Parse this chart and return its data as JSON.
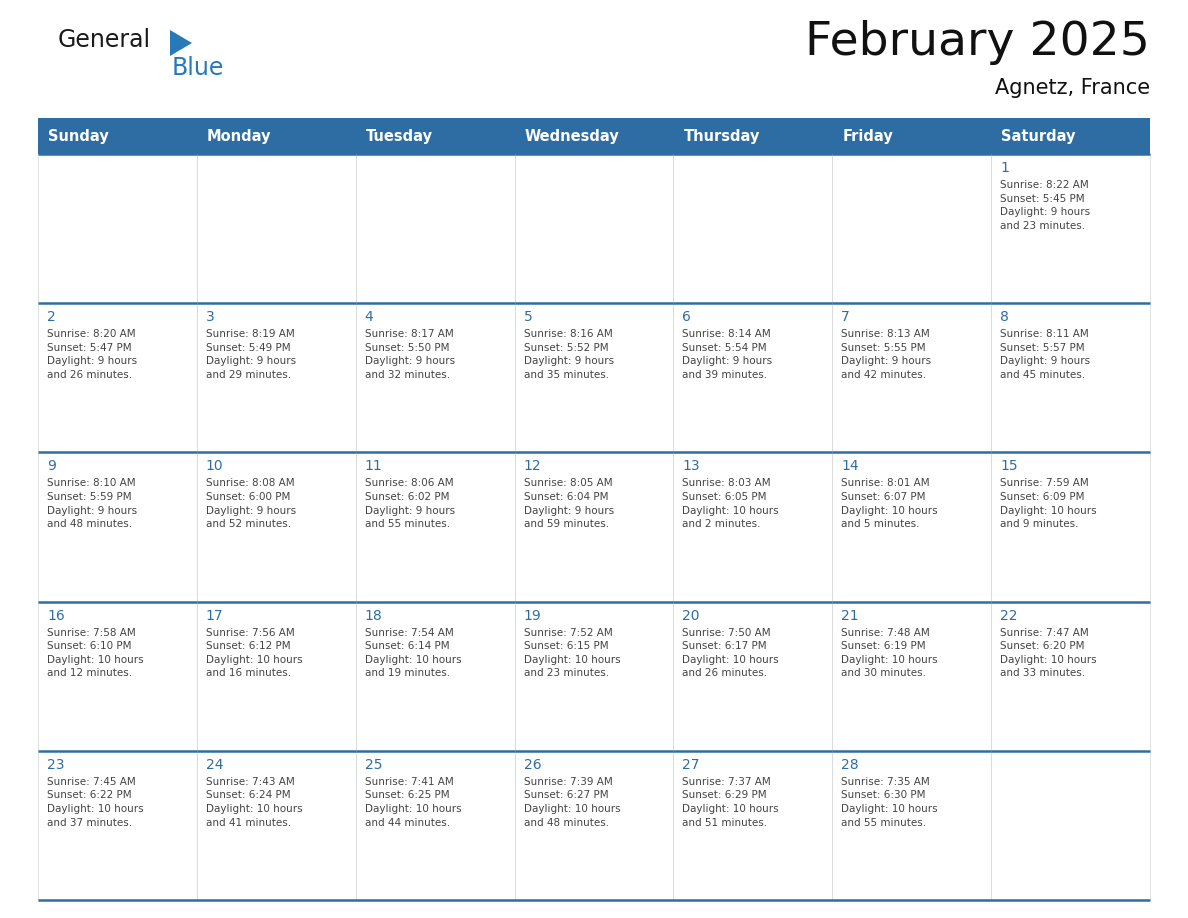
{
  "title": "February 2025",
  "subtitle": "Agnetz, France",
  "header_color": "#2E6DA4",
  "header_text_color": "#FFFFFF",
  "cell_bg_color": "#FFFFFF",
  "border_color": "#2E6DA4",
  "day_number_color": "#2E6DA4",
  "text_color": "#444444",
  "days_of_week": [
    "Sunday",
    "Monday",
    "Tuesday",
    "Wednesday",
    "Thursday",
    "Friday",
    "Saturday"
  ],
  "calendar_data": [
    [
      {
        "day": null,
        "info": null
      },
      {
        "day": null,
        "info": null
      },
      {
        "day": null,
        "info": null
      },
      {
        "day": null,
        "info": null
      },
      {
        "day": null,
        "info": null
      },
      {
        "day": null,
        "info": null
      },
      {
        "day": 1,
        "info": "Sunrise: 8:22 AM\nSunset: 5:45 PM\nDaylight: 9 hours\nand 23 minutes."
      }
    ],
    [
      {
        "day": 2,
        "info": "Sunrise: 8:20 AM\nSunset: 5:47 PM\nDaylight: 9 hours\nand 26 minutes."
      },
      {
        "day": 3,
        "info": "Sunrise: 8:19 AM\nSunset: 5:49 PM\nDaylight: 9 hours\nand 29 minutes."
      },
      {
        "day": 4,
        "info": "Sunrise: 8:17 AM\nSunset: 5:50 PM\nDaylight: 9 hours\nand 32 minutes."
      },
      {
        "day": 5,
        "info": "Sunrise: 8:16 AM\nSunset: 5:52 PM\nDaylight: 9 hours\nand 35 minutes."
      },
      {
        "day": 6,
        "info": "Sunrise: 8:14 AM\nSunset: 5:54 PM\nDaylight: 9 hours\nand 39 minutes."
      },
      {
        "day": 7,
        "info": "Sunrise: 8:13 AM\nSunset: 5:55 PM\nDaylight: 9 hours\nand 42 minutes."
      },
      {
        "day": 8,
        "info": "Sunrise: 8:11 AM\nSunset: 5:57 PM\nDaylight: 9 hours\nand 45 minutes."
      }
    ],
    [
      {
        "day": 9,
        "info": "Sunrise: 8:10 AM\nSunset: 5:59 PM\nDaylight: 9 hours\nand 48 minutes."
      },
      {
        "day": 10,
        "info": "Sunrise: 8:08 AM\nSunset: 6:00 PM\nDaylight: 9 hours\nand 52 minutes."
      },
      {
        "day": 11,
        "info": "Sunrise: 8:06 AM\nSunset: 6:02 PM\nDaylight: 9 hours\nand 55 minutes."
      },
      {
        "day": 12,
        "info": "Sunrise: 8:05 AM\nSunset: 6:04 PM\nDaylight: 9 hours\nand 59 minutes."
      },
      {
        "day": 13,
        "info": "Sunrise: 8:03 AM\nSunset: 6:05 PM\nDaylight: 10 hours\nand 2 minutes."
      },
      {
        "day": 14,
        "info": "Sunrise: 8:01 AM\nSunset: 6:07 PM\nDaylight: 10 hours\nand 5 minutes."
      },
      {
        "day": 15,
        "info": "Sunrise: 7:59 AM\nSunset: 6:09 PM\nDaylight: 10 hours\nand 9 minutes."
      }
    ],
    [
      {
        "day": 16,
        "info": "Sunrise: 7:58 AM\nSunset: 6:10 PM\nDaylight: 10 hours\nand 12 minutes."
      },
      {
        "day": 17,
        "info": "Sunrise: 7:56 AM\nSunset: 6:12 PM\nDaylight: 10 hours\nand 16 minutes."
      },
      {
        "day": 18,
        "info": "Sunrise: 7:54 AM\nSunset: 6:14 PM\nDaylight: 10 hours\nand 19 minutes."
      },
      {
        "day": 19,
        "info": "Sunrise: 7:52 AM\nSunset: 6:15 PM\nDaylight: 10 hours\nand 23 minutes."
      },
      {
        "day": 20,
        "info": "Sunrise: 7:50 AM\nSunset: 6:17 PM\nDaylight: 10 hours\nand 26 minutes."
      },
      {
        "day": 21,
        "info": "Sunrise: 7:48 AM\nSunset: 6:19 PM\nDaylight: 10 hours\nand 30 minutes."
      },
      {
        "day": 22,
        "info": "Sunrise: 7:47 AM\nSunset: 6:20 PM\nDaylight: 10 hours\nand 33 minutes."
      }
    ],
    [
      {
        "day": 23,
        "info": "Sunrise: 7:45 AM\nSunset: 6:22 PM\nDaylight: 10 hours\nand 37 minutes."
      },
      {
        "day": 24,
        "info": "Sunrise: 7:43 AM\nSunset: 6:24 PM\nDaylight: 10 hours\nand 41 minutes."
      },
      {
        "day": 25,
        "info": "Sunrise: 7:41 AM\nSunset: 6:25 PM\nDaylight: 10 hours\nand 44 minutes."
      },
      {
        "day": 26,
        "info": "Sunrise: 7:39 AM\nSunset: 6:27 PM\nDaylight: 10 hours\nand 48 minutes."
      },
      {
        "day": 27,
        "info": "Sunrise: 7:37 AM\nSunset: 6:29 PM\nDaylight: 10 hours\nand 51 minutes."
      },
      {
        "day": 28,
        "info": "Sunrise: 7:35 AM\nSunset: 6:30 PM\nDaylight: 10 hours\nand 55 minutes."
      },
      {
        "day": null,
        "info": null
      }
    ]
  ],
  "logo_color_general": "#1a1a1a",
  "logo_color_blue": "#2779B8",
  "logo_triangle_color": "#2779B8"
}
